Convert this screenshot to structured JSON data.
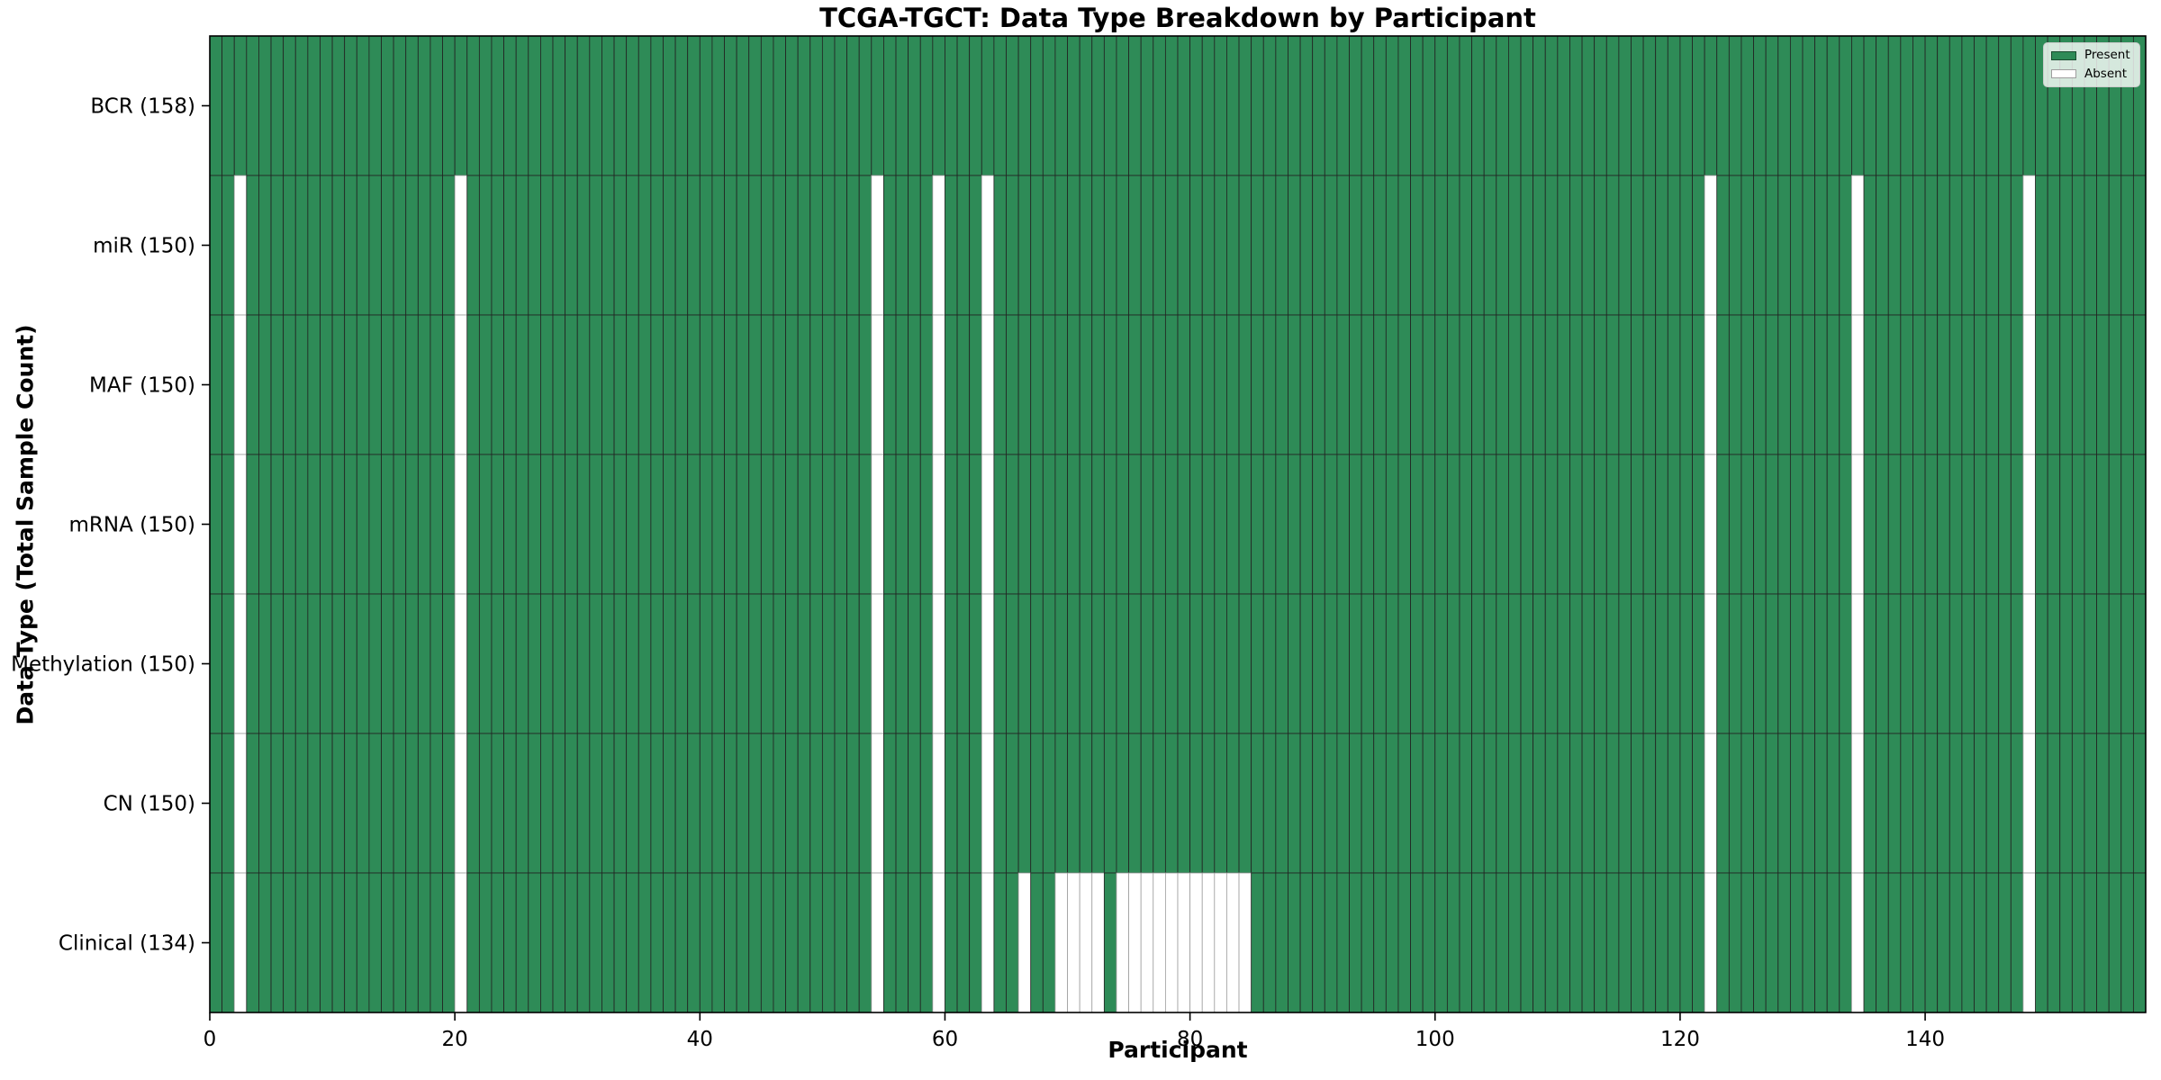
{
  "chart_data": {
    "type": "heatmap",
    "title": "TCGA-TGCT: Data Type Breakdown by Participant",
    "xlabel": "Participant",
    "ylabel": "Data Type (Total Sample Count)",
    "x_axis": {
      "ticks": [
        0,
        20,
        40,
        60,
        80,
        100,
        120,
        140
      ],
      "range": [
        0,
        158
      ]
    },
    "n_participants": 158,
    "legend": {
      "present_label": "Present",
      "absent_label": "Absent",
      "position": "upper right"
    },
    "colors": {
      "present": "#2e8b57",
      "absent": "#ffffff",
      "cell_edge_present": "#222222",
      "cell_edge_absent": "#9e9e9e",
      "plot_border": "#000000",
      "background": "#ffffff"
    },
    "rows": [
      {
        "data_type": "BCR",
        "label": "BCR (158)",
        "total_samples": 158,
        "absent_participants": []
      },
      {
        "data_type": "miR",
        "label": "miR (150)",
        "total_samples": 150,
        "absent_participants": [
          2,
          20,
          54,
          59,
          63,
          122,
          134,
          148
        ]
      },
      {
        "data_type": "MAF",
        "label": "MAF (150)",
        "total_samples": 150,
        "absent_participants": [
          2,
          20,
          54,
          59,
          63,
          122,
          134,
          148
        ]
      },
      {
        "data_type": "mRNA",
        "label": "mRNA (150)",
        "total_samples": 150,
        "absent_participants": [
          2,
          20,
          54,
          59,
          63,
          122,
          134,
          148
        ]
      },
      {
        "data_type": "Methylation",
        "label": "Methylation (150)",
        "total_samples": 150,
        "absent_participants": [
          2,
          20,
          54,
          59,
          63,
          122,
          134,
          148
        ]
      },
      {
        "data_type": "CN",
        "label": "CN (150)",
        "total_samples": 150,
        "absent_participants": [
          2,
          20,
          54,
          59,
          63,
          122,
          134,
          148
        ]
      },
      {
        "data_type": "Clinical",
        "label": "Clinical (134)",
        "total_samples": 134,
        "absent_participants": [
          2,
          20,
          54,
          59,
          63,
          66,
          69,
          70,
          71,
          72,
          74,
          75,
          76,
          77,
          78,
          79,
          80,
          81,
          82,
          83,
          84,
          122,
          134,
          148
        ]
      }
    ]
  }
}
